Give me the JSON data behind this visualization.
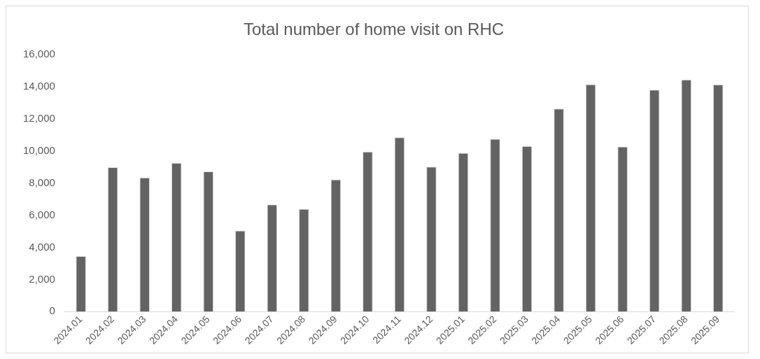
{
  "chart_data": {
    "type": "bar",
    "title": "Total number of home visit on RHC",
    "categories": [
      "2024.01",
      "2024.02",
      "2024.03",
      "2024.04",
      "2024.05",
      "2024.06",
      "2024.07",
      "2024.08",
      "2024.09",
      "2024.10",
      "2024.11",
      "2024.12",
      "2025.01",
      "2025.02",
      "2025.03",
      "2025.04",
      "2025.05",
      "2025.06",
      "2025.07",
      "2025.08",
      "2025.09"
    ],
    "values": [
      3450,
      8980,
      8340,
      9250,
      8720,
      5040,
      6660,
      6390,
      8220,
      9950,
      10840,
      9020,
      9880,
      10750,
      10300,
      12630,
      14140,
      10270,
      13800,
      14430,
      14130
    ],
    "color": "#636363",
    "ylim": [
      0,
      16000
    ],
    "yticks": [
      0,
      {
        "value": 2000,
        "label": "2,000"
      },
      {
        "value": 4000,
        "label": "4,000"
      },
      {
        "value": 6000,
        "label": "6,000"
      },
      {
        "value": 8000,
        "label": "8,000"
      },
      {
        "value": 10000,
        "label": "10,000"
      },
      {
        "value": 12000,
        "label": "12,000"
      },
      {
        "value": 14000,
        "label": "14,000"
      },
      {
        "value": 16000,
        "label": "16,000"
      }
    ],
    "grid": false,
    "legend": false
  }
}
